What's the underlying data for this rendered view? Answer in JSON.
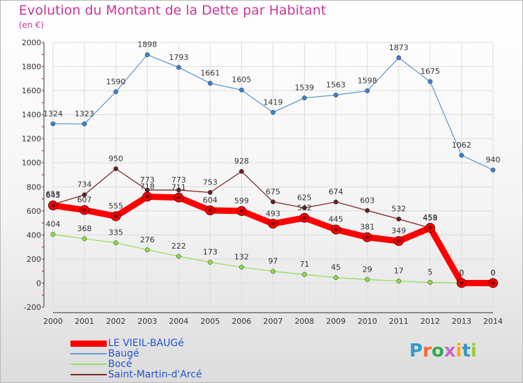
{
  "title": "Evolution du Montant de la Dette par Habitant",
  "subtitle": "(en €)",
  "logo_text": "Proxiti",
  "colors": {
    "title": "#cc3399",
    "legend_text": "#2255cc",
    "vieil": "#ff0000",
    "bauge": "#6699cc",
    "boce": "#99dd66",
    "saint": "#7f2a2a"
  },
  "chart_data": {
    "type": "line",
    "title": "Evolution du Montant de la Dette par Habitant",
    "ylabel": "(en €)",
    "x": [
      "2000",
      "2001",
      "2002",
      "2003",
      "2004",
      "2005",
      "2006",
      "2007",
      "2008",
      "2009",
      "2010",
      "2011",
      "2012",
      "2013",
      "2014"
    ],
    "ylim": [
      -200,
      2000
    ],
    "yticks": [
      "-200",
      "0",
      "200",
      "400",
      "600",
      "800",
      "1000",
      "1200",
      "1400",
      "1600",
      "1800",
      "2000"
    ],
    "grid": true,
    "legend_position": "bottom-left",
    "series": [
      {
        "name": "LE VIEIL-BAUGé",
        "key": "vieil",
        "values": [
          645,
          607,
          555,
          718,
          711,
          604,
          599,
          493,
          542,
          445,
          381,
          349,
          459,
          0,
          0
        ]
      },
      {
        "name": "Baugé",
        "key": "bauge",
        "values": [
          1324,
          1323,
          1590,
          1898,
          1793,
          1661,
          1605,
          1419,
          1539,
          1563,
          1598,
          1873,
          1675,
          1062,
          940
        ]
      },
      {
        "name": "Bocé",
        "key": "boce",
        "values": [
          404,
          368,
          335,
          276,
          222,
          173,
          132,
          97,
          71,
          45,
          29,
          17,
          5,
          0,
          0
        ]
      },
      {
        "name": "Saint-Martin-d'Arcé",
        "key": "saint",
        "values": [
          653,
          734,
          950,
          773,
          773,
          753,
          928,
          675,
          625,
          674,
          603,
          532,
          458,
          0,
          0
        ]
      }
    ]
  }
}
